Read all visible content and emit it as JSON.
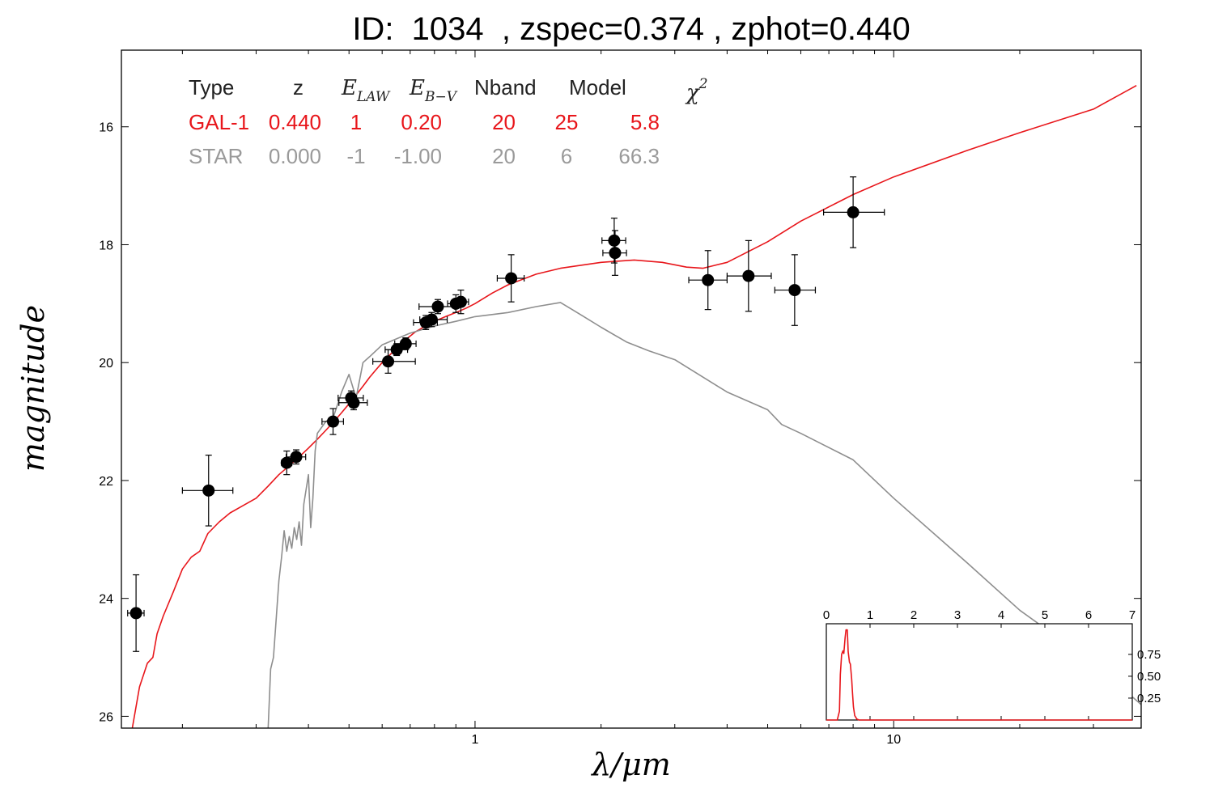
{
  "title": "ID:  1034  , zspec=0.374 , zphot=0.440",
  "colors": {
    "galaxy": "#e8161b",
    "star": "#8e8e8e",
    "points": "#000000",
    "text": "#000000"
  },
  "chart_data": [
    {
      "type": "scatter",
      "xlabel": "λ/μm",
      "ylabel": "magnitude",
      "xscale": "log",
      "xlim": [
        0.143,
        39.0
      ],
      "ylim": [
        26.2,
        14.7
      ],
      "x_ticks": [
        {
          "value": 1,
          "label": "1"
        },
        {
          "value": 10,
          "label": "10"
        }
      ],
      "y_ticks": [
        {
          "value": 16,
          "label": "16"
        },
        {
          "value": 18,
          "label": "18"
        },
        {
          "value": 20,
          "label": "20"
        },
        {
          "value": 22,
          "label": "22"
        },
        {
          "value": 24,
          "label": "24"
        },
        {
          "value": 26,
          "label": "26"
        }
      ],
      "legend_table": {
        "headers": {
          "type": "Type",
          "z": "z",
          "elaw": "E",
          "elaw_sub": "LAW",
          "ebv": "E",
          "ebv_sub": "B−V",
          "nband": "Nband",
          "model": "Model",
          "chi2": "χ",
          "chi2_sup": "2"
        },
        "rows": [
          {
            "type": "GAL-1",
            "z": "0.440",
            "elaw": "1",
            "ebv": "0.20",
            "nband": "20",
            "model": "25",
            "chi2": "5.8",
            "color": "#e8161b"
          },
          {
            "type": "STAR",
            "z": "0.000",
            "elaw": "-1",
            "ebv": "-1.00",
            "nband": "20",
            "model": "6",
            "chi2": "66.3",
            "color": "#9a9a9a"
          }
        ]
      },
      "points": [
        {
          "x": 0.155,
          "y": 24.25,
          "xerr_lo": 0.007,
          "xerr_hi": 0.007,
          "yerr": 0.65
        },
        {
          "x": 0.231,
          "y": 22.17,
          "xerr_lo": 0.031,
          "xerr_hi": 0.033,
          "yerr": 0.6
        },
        {
          "x": 0.355,
          "y": 21.7,
          "xerr_lo": 0.01,
          "xerr_hi": 0.01,
          "yerr": 0.2
        },
        {
          "x": 0.374,
          "y": 21.6,
          "xerr_lo": 0.02,
          "xerr_hi": 0.02,
          "yerr": 0.12
        },
        {
          "x": 0.458,
          "y": 21.0,
          "xerr_lo": 0.027,
          "xerr_hi": 0.027,
          "yerr": 0.22
        },
        {
          "x": 0.506,
          "y": 20.6,
          "xerr_lo": 0.035,
          "xerr_hi": 0.035,
          "yerr": 0.12
        },
        {
          "x": 0.513,
          "y": 20.68,
          "xerr_lo": 0.04,
          "xerr_hi": 0.04,
          "yerr": 0.12
        },
        {
          "x": 0.62,
          "y": 19.98,
          "xerr_lo": 0.05,
          "xerr_hi": 0.1,
          "yerr": 0.2
        },
        {
          "x": 0.65,
          "y": 19.78,
          "xerr_lo": 0.04,
          "xerr_hi": 0.04,
          "yerr": 0.1
        },
        {
          "x": 0.683,
          "y": 19.68,
          "xerr_lo": 0.04,
          "xerr_hi": 0.04,
          "yerr": 0.1
        },
        {
          "x": 0.763,
          "y": 19.32,
          "xerr_lo": 0.05,
          "xerr_hi": 0.05,
          "yerr": 0.12
        },
        {
          "x": 0.788,
          "y": 19.27,
          "xerr_lo": 0.05,
          "xerr_hi": 0.07,
          "yerr": 0.12
        },
        {
          "x": 0.815,
          "y": 19.05,
          "xerr_lo": 0.08,
          "xerr_hi": 0.08,
          "yerr": 0.12
        },
        {
          "x": 0.9,
          "y": 19.0,
          "xerr_lo": 0.04,
          "xerr_hi": 0.04,
          "yerr": 0.15
        },
        {
          "x": 0.925,
          "y": 18.97,
          "xerr_lo": 0.04,
          "xerr_hi": 0.04,
          "yerr": 0.2
        },
        {
          "x": 1.22,
          "y": 18.57,
          "xerr_lo": 0.09,
          "xerr_hi": 0.09,
          "yerr": 0.4
        },
        {
          "x": 2.15,
          "y": 17.93,
          "xerr_lo": 0.14,
          "xerr_hi": 0.14,
          "yerr": 0.38
        },
        {
          "x": 2.16,
          "y": 18.14,
          "xerr_lo": 0.14,
          "xerr_hi": 0.14,
          "yerr": 0.38
        },
        {
          "x": 3.6,
          "y": 18.6,
          "xerr_lo": 0.36,
          "xerr_hi": 0.4,
          "yerr": 0.5
        },
        {
          "x": 4.5,
          "y": 18.53,
          "xerr_lo": 0.5,
          "xerr_hi": 0.6,
          "yerr": 0.6
        },
        {
          "x": 5.8,
          "y": 18.77,
          "xerr_lo": 0.6,
          "xerr_hi": 0.7,
          "yerr": 0.6
        },
        {
          "x": 8.0,
          "y": 17.45,
          "xerr_lo": 1.2,
          "xerr_hi": 1.5,
          "yerr": 0.6
        }
      ],
      "series": [
        {
          "name": "GAL-1",
          "color": "#e8161b",
          "x": [
            0.151,
            0.158,
            0.165,
            0.17,
            0.174,
            0.18,
            0.19,
            0.2,
            0.21,
            0.22,
            0.23,
            0.245,
            0.26,
            0.28,
            0.3,
            0.32,
            0.34,
            0.36,
            0.38,
            0.4,
            0.42,
            0.44,
            0.46,
            0.48,
            0.5,
            0.52,
            0.54,
            0.56,
            0.58,
            0.6,
            0.62,
            0.65,
            0.68,
            0.7,
            0.72,
            0.74,
            0.76,
            0.78,
            0.8,
            0.85,
            0.9,
            0.95,
            1.0,
            1.1,
            1.2,
            1.4,
            1.6,
            2.0,
            2.4,
            2.8,
            3.2,
            3.5,
            4.0,
            5.0,
            6.0,
            8.0,
            10.0,
            15.0,
            20.0,
            30.0,
            38.0
          ],
          "y": [
            26.3,
            25.5,
            25.1,
            25.0,
            24.6,
            24.3,
            23.9,
            23.5,
            23.3,
            23.2,
            22.9,
            22.7,
            22.55,
            22.42,
            22.3,
            22.1,
            21.9,
            21.75,
            21.6,
            21.45,
            21.3,
            21.15,
            21.0,
            20.85,
            20.7,
            20.55,
            20.4,
            20.25,
            20.12,
            20.0,
            19.9,
            19.75,
            19.62,
            19.55,
            19.48,
            19.43,
            19.38,
            19.33,
            19.3,
            19.22,
            19.15,
            19.08,
            19.0,
            18.82,
            18.68,
            18.5,
            18.4,
            18.3,
            18.26,
            18.3,
            18.38,
            18.4,
            18.3,
            17.95,
            17.6,
            17.15,
            16.85,
            16.4,
            16.1,
            15.7,
            15.3
          ]
        },
        {
          "name": "STAR",
          "color": "#8e8e8e",
          "x": [
            0.32,
            0.325,
            0.33,
            0.34,
            0.345,
            0.35,
            0.355,
            0.36,
            0.365,
            0.37,
            0.375,
            0.38,
            0.385,
            0.39,
            0.4,
            0.405,
            0.41,
            0.415,
            0.42,
            0.44,
            0.46,
            0.48,
            0.5,
            0.52,
            0.54,
            0.56,
            0.6,
            0.7,
            0.8,
            0.9,
            1.0,
            1.2,
            1.4,
            1.6,
            1.8,
            2.0,
            2.3,
            2.6,
            3.0,
            4.0,
            5.0,
            5.4,
            6.0,
            8.0,
            10.0,
            15.0,
            20.0,
            30.0,
            39.0
          ],
          "y": [
            26.3,
            25.2,
            25.0,
            23.7,
            23.3,
            22.85,
            23.2,
            22.95,
            23.15,
            22.8,
            23.0,
            22.7,
            23.1,
            22.4,
            21.9,
            22.8,
            22.3,
            21.5,
            21.2,
            21.0,
            20.9,
            20.5,
            20.2,
            20.6,
            20.0,
            19.9,
            19.7,
            19.5,
            19.38,
            19.3,
            19.22,
            19.15,
            19.05,
            18.98,
            19.2,
            19.4,
            19.65,
            19.8,
            19.95,
            20.5,
            20.8,
            21.05,
            21.2,
            21.65,
            22.3,
            23.4,
            24.2,
            25.1,
            25.8
          ]
        }
      ]
    },
    {
      "type": "line",
      "xlim": [
        0,
        7
      ],
      "ylim": [
        0,
        1.1
      ],
      "x_ticks": [
        "0",
        "1",
        "2",
        "3",
        "4",
        "5",
        "6",
        "7"
      ],
      "y_ticks": [
        "0.25",
        "0.50",
        "0.75"
      ],
      "series": [
        {
          "color": "#e8161b",
          "x": [
            0.0,
            0.25,
            0.3,
            0.32,
            0.35,
            0.38,
            0.4,
            0.43,
            0.45,
            0.48,
            0.5,
            0.53,
            0.55,
            0.58,
            0.6,
            0.62,
            0.65,
            0.7,
            0.75,
            7.0
          ],
          "y": [
            0.0,
            0.0,
            0.1,
            0.52,
            0.75,
            0.79,
            0.76,
            0.94,
            1.03,
            1.03,
            0.78,
            0.66,
            0.64,
            0.47,
            0.3,
            0.15,
            0.05,
            0.01,
            0.0,
            0.0
          ]
        }
      ]
    }
  ]
}
